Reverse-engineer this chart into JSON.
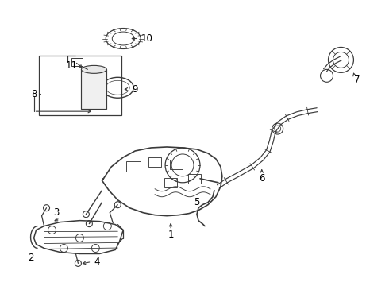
{
  "background_color": "#ffffff",
  "line_color": "#3a3a3a",
  "label_color": "#000000",
  "fig_width": 4.9,
  "fig_height": 3.6,
  "dpi": 100
}
